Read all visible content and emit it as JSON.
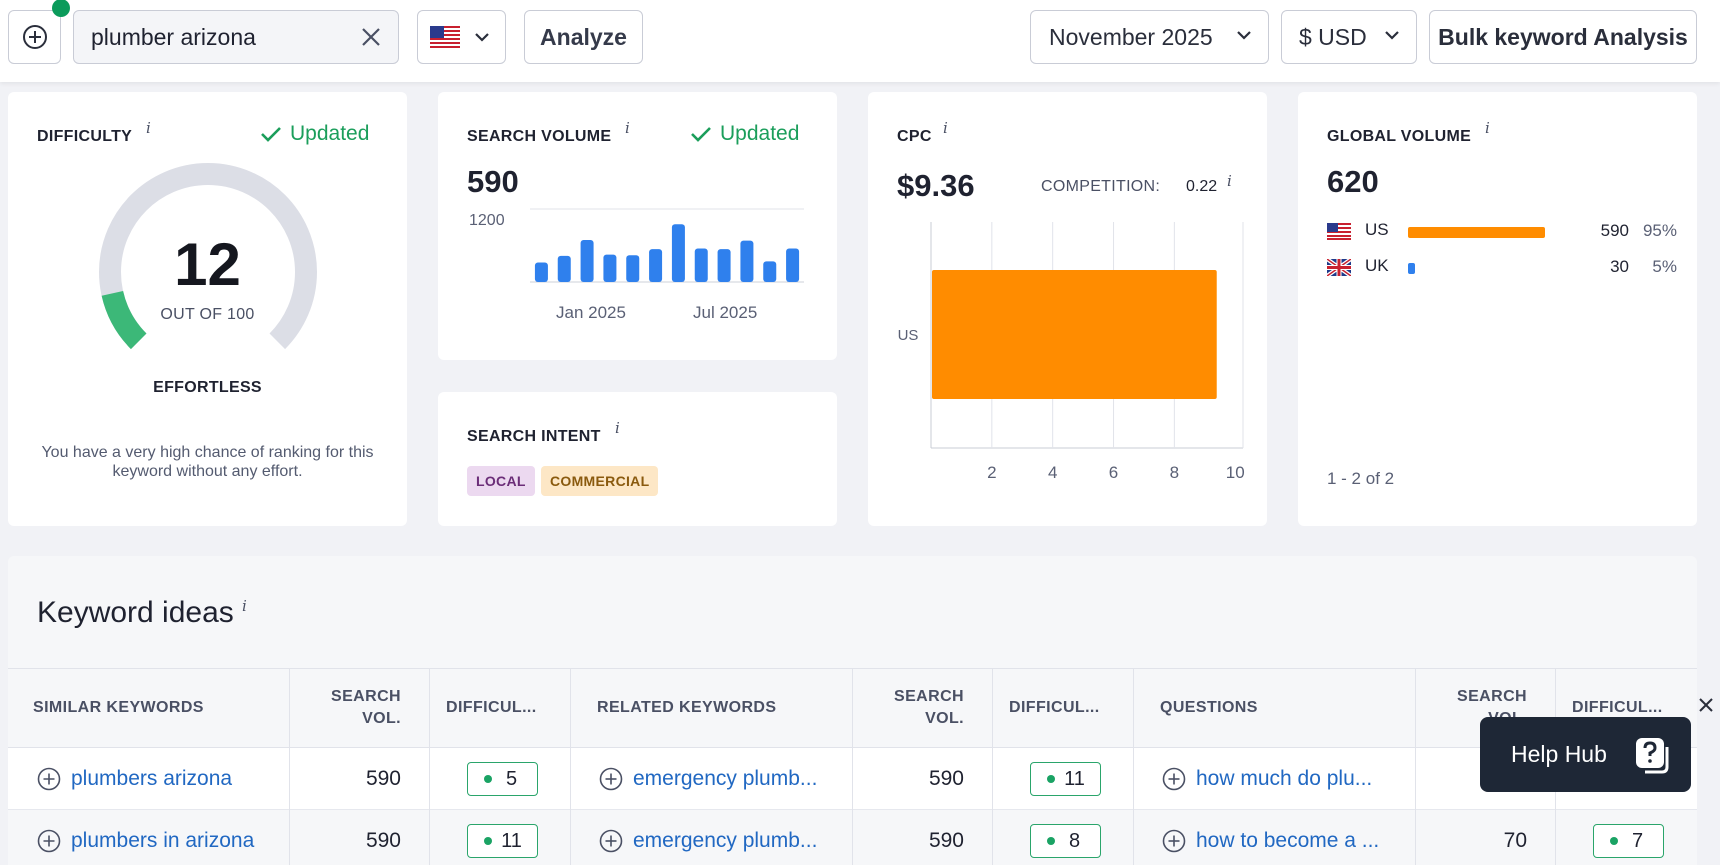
{
  "topbar": {
    "search_value": "plumber arizona",
    "country_flag": "us-flag-icon",
    "analyze_label": "Analyze",
    "month_label": "November 2025",
    "currency_label": "$ USD",
    "bulk_label": "Bulk keyword Analysis"
  },
  "difficulty": {
    "title": "DIFFICULTY",
    "info": "i",
    "updated": "Updated",
    "value": "12",
    "out_of": "OUT OF 100",
    "level": "EFFORTLESS",
    "description": "You have a very high chance of ranking for this keyword without any effort.",
    "score_fraction": 0.12,
    "colors": {
      "filled": "#3cb878",
      "track": "#dcdee6"
    }
  },
  "search_volume": {
    "title": "SEARCH VOLUME",
    "info": "i",
    "updated": "Updated",
    "value": "590",
    "y_max_label": "1200",
    "x_labels": [
      "Jan 2025",
      "Jul 2025"
    ],
    "chart_data": {
      "type": "bar",
      "y_max": 1200,
      "values": [
        320,
        430,
        690,
        450,
        440,
        540,
        950,
        550,
        540,
        680,
        340,
        550
      ],
      "color": "#2f80ed"
    }
  },
  "search_intent": {
    "title": "SEARCH INTENT",
    "info": "i",
    "tags": [
      "LOCAL",
      "COMMERCIAL"
    ]
  },
  "cpc": {
    "title": "CPC",
    "info": "i",
    "value": "$9.36",
    "competition_label": "COMPETITION:",
    "competition_value": "0.22",
    "chart_data": {
      "type": "bar",
      "orientation": "horizontal",
      "categories": [
        "US"
      ],
      "values": [
        9.36
      ],
      "x_ticks": [
        "2",
        "4",
        "6",
        "8",
        "10"
      ],
      "x_max": 10,
      "color": "#ff8c00"
    }
  },
  "global_volume": {
    "title": "GLOBAL VOLUME",
    "info": "i",
    "value": "620",
    "rows": [
      {
        "flag": "us-flag-icon",
        "code": "US",
        "volume": "590",
        "percent": "95%",
        "share": 0.95,
        "color": "#ff8c00"
      },
      {
        "flag": "uk-flag-icon",
        "code": "UK",
        "volume": "30",
        "percent": "5%",
        "share": 0.05,
        "color": "#2f80ed"
      }
    ],
    "footer": "1 - 2 of 2"
  },
  "keyword_ideas": {
    "title": "Keyword ideas",
    "info": "i",
    "headers": {
      "similar": "SIMILAR KEYWORDS",
      "related": "RELATED KEYWORDS",
      "questions": "QUESTIONS",
      "search_vol_line1": "SEARCH",
      "search_vol_line2": "VOL.",
      "difficulty": "DIFFICUL..."
    },
    "rows": [
      {
        "similar": {
          "keyword": "plumbers arizona",
          "volume": "590",
          "difficulty": "5"
        },
        "related": {
          "keyword": "emergency plumb...",
          "volume": "590",
          "difficulty": "11"
        },
        "question": {
          "keyword": "how much do plu...",
          "volume": "",
          "difficulty": ""
        }
      },
      {
        "similar": {
          "keyword": "plumbers in arizona",
          "volume": "590",
          "difficulty": "11"
        },
        "related": {
          "keyword": "emergency plumb...",
          "volume": "590",
          "difficulty": "8"
        },
        "question": {
          "keyword": "how to become a ...",
          "volume": "70",
          "difficulty": "7"
        }
      }
    ]
  },
  "help_hub": {
    "label": "Help Hub"
  }
}
